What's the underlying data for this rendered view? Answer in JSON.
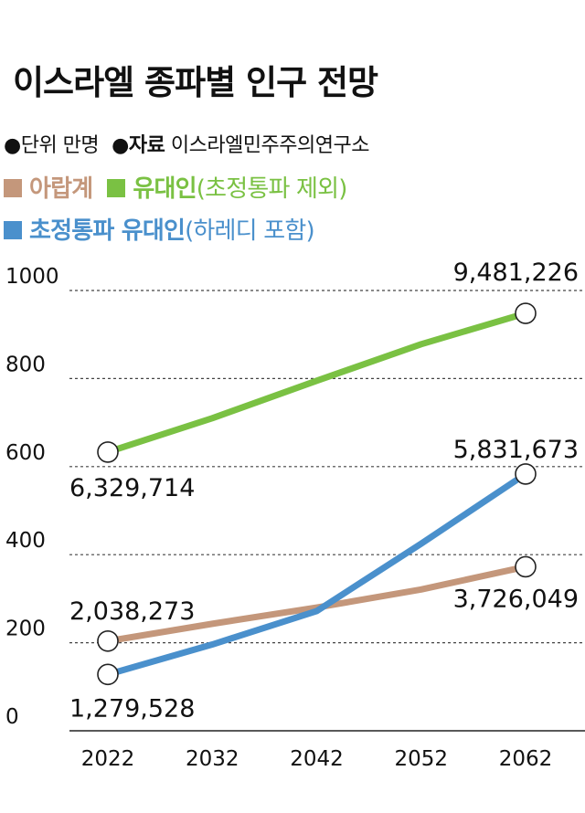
{
  "header": {
    "title": "이스라엘 종파별 인구 전망",
    "unit_bullet": "●",
    "unit_text": "단위 만명",
    "source_bullet": "●",
    "source_key": "자료",
    "source_text": "이스라엘민주주의연구소"
  },
  "chart_data": {
    "type": "line",
    "x": [
      2022,
      2032,
      2042,
      2052,
      2062
    ],
    "xticks": [
      "2022",
      "2032",
      "2042",
      "2052",
      "2062"
    ],
    "yticks": [
      "0",
      "200",
      "400",
      "600",
      "800",
      "1000"
    ],
    "ylim": [
      0,
      1000
    ],
    "grid": true,
    "legend_position": "top-left",
    "series": [
      {
        "name": "아랍계",
        "qualifier": "",
        "color": "#c4977b",
        "values": [
          203.8,
          243,
          280,
          321,
          372.6
        ],
        "start_label": "2,038,273",
        "end_label": "3,726,049"
      },
      {
        "name": "유대인",
        "qualifier": "(초정통파 제외)",
        "color": "#7ac143",
        "values": [
          633,
          710,
          795,
          878,
          948.1
        ],
        "start_label": "6,329,714",
        "end_label": "9,481,226"
      },
      {
        "name": "초정통파 유대인",
        "qualifier": "(하레디 포함)",
        "color": "#4a90cc",
        "values": [
          128,
          196,
          272,
          425,
          583.2
        ],
        "start_label": "1,279,528",
        "end_label": "5,831,673"
      }
    ]
  }
}
